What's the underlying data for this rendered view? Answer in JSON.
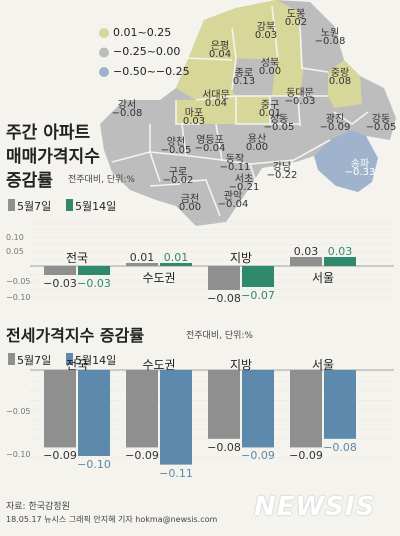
{
  "colors": {
    "background": "#f4f3ee",
    "map_yellow": "#d8d79a",
    "map_gray": "#bdbdbd",
    "map_blue": "#9fb3cc",
    "bar_week1_gray": "#8f8f8f",
    "bar_sale_week2_green": "#2f8a6d",
    "bar_jeonse_week2_blue": "#5d89ad"
  },
  "map": {
    "legend": [
      "0.01~0.25",
      "−0.25~0.00",
      "−0.50~−0.25"
    ],
    "districts": [
      {
        "name": "도봉",
        "value": "0.02",
        "tier": "yellow"
      },
      {
        "name": "강북",
        "value": "0.03",
        "tier": "yellow"
      },
      {
        "name": "노원",
        "value": "−0.08",
        "tier": "gray"
      },
      {
        "name": "은평",
        "value": "0.04",
        "tier": "yellow"
      },
      {
        "name": "성북",
        "value": "0.00",
        "tier": "gray"
      },
      {
        "name": "종로",
        "value": "0.13",
        "tier": "yellow"
      },
      {
        "name": "중랑",
        "value": "0.08",
        "tier": "yellow"
      },
      {
        "name": "서대문",
        "value": "0.04",
        "tier": "yellow"
      },
      {
        "name": "동대문",
        "value": "−0.03",
        "tier": "gray"
      },
      {
        "name": "강서",
        "value": "−0.08",
        "tier": "gray"
      },
      {
        "name": "마포",
        "value": "0.03",
        "tier": "yellow"
      },
      {
        "name": "중구",
        "value": "0.01",
        "tier": "yellow"
      },
      {
        "name": "성동",
        "value": "−0.05",
        "tier": "gray"
      },
      {
        "name": "광진",
        "value": "−0.09",
        "tier": "gray"
      },
      {
        "name": "강동",
        "value": "−0.05",
        "tier": "gray"
      },
      {
        "name": "양천",
        "value": "−0.05",
        "tier": "gray"
      },
      {
        "name": "영등포",
        "value": "−0.04",
        "tier": "gray"
      },
      {
        "name": "용산",
        "value": "0.00",
        "tier": "gray"
      },
      {
        "name": "구로",
        "value": "−0.02",
        "tier": "gray"
      },
      {
        "name": "동작",
        "value": "−0.11",
        "tier": "gray"
      },
      {
        "name": "송파",
        "value": "−0.33",
        "tier": "blue"
      },
      {
        "name": "강남",
        "value": "−0.22",
        "tier": "gray"
      },
      {
        "name": "서초",
        "value": "−0.21",
        "tier": "gray"
      },
      {
        "name": "금천",
        "value": "0.00",
        "tier": "gray"
      },
      {
        "name": "관악",
        "value": "−0.04",
        "tier": "gray"
      }
    ]
  },
  "section1": {
    "title_line1": "주간 아파트",
    "title_line2": "매매가격지수",
    "title_line3": "증감률",
    "unit": "전주대비, 단위:%"
  },
  "section2": {
    "title": "전세가격지수 증감률",
    "unit": "전주대비, 단위:%"
  },
  "chart_data": [
    {
      "type": "bar",
      "title": "주간 아파트 매매가격지수 증감률",
      "categories": [
        "전국",
        "수도권",
        "지방",
        "서울"
      ],
      "series": [
        {
          "name": "5월7일",
          "values": [
            -0.03,
            0.01,
            -0.08,
            0.03
          ]
        },
        {
          "name": "5월14일",
          "values": [
            -0.03,
            0.01,
            -0.07,
            0.03
          ]
        }
      ],
      "value_labels": [
        [
          "−0.03",
          "0.01",
          "−0.08",
          "0.03"
        ],
        [
          "−0.03",
          "0.01",
          "−0.07",
          "0.03"
        ]
      ],
      "ytick_labels": [
        "0.10",
        "0.05",
        "−0.05",
        "−0.10"
      ],
      "ylim": [
        -0.1,
        0.1
      ],
      "legend": "top-left",
      "grid": true
    },
    {
      "type": "bar",
      "title": "전세가격지수 증감률",
      "categories": [
        "전국",
        "수도권",
        "지방",
        "서울"
      ],
      "series": [
        {
          "name": "5월7일",
          "values": [
            -0.09,
            -0.09,
            -0.08,
            -0.09
          ]
        },
        {
          "name": "5월14일",
          "values": [
            -0.1,
            -0.11,
            -0.09,
            -0.08
          ]
        }
      ],
      "value_labels": [
        [
          "−0.09",
          "−0.09",
          "−0.08",
          "−0.09"
        ],
        [
          "−0.10",
          "−0.11",
          "−0.09",
          "−0.08"
        ]
      ],
      "ytick_labels": [
        "−0.05",
        "−0.10"
      ],
      "ylim": [
        -0.11,
        0
      ],
      "legend": "top-left",
      "grid": true
    }
  ],
  "footer": {
    "source": "자료: 한국감정원",
    "credit": "18.05.17 뉴시스 그래픽 안지혜 기자 hokma@newsis.com",
    "logo": "NEWSIS"
  }
}
